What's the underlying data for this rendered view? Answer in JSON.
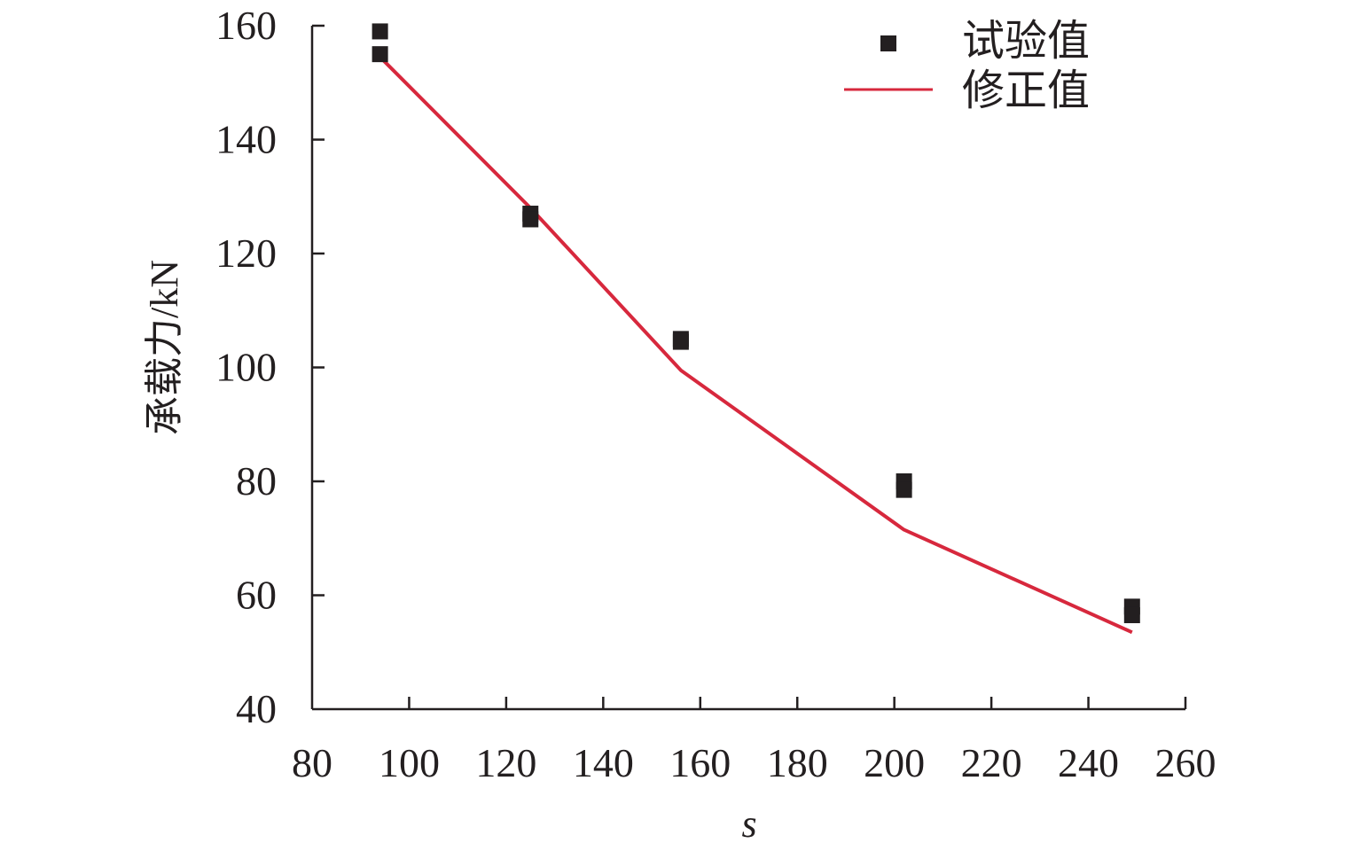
{
  "chart_data": {
    "type": "scatter",
    "title": "",
    "xlabel": "s",
    "ylabel": "承载力/kN",
    "xlim": [
      80,
      260
    ],
    "ylim": [
      40,
      160
    ],
    "x_ticks": [
      80,
      100,
      120,
      140,
      160,
      180,
      200,
      220,
      240,
      260
    ],
    "y_ticks": [
      40,
      60,
      80,
      100,
      120,
      140,
      160
    ],
    "grid": false,
    "legend_position": "top-right",
    "series": [
      {
        "name": "试验值",
        "kind": "scatter",
        "marker": "square",
        "color": "#231f20",
        "points": [
          {
            "x": 94,
            "y": 159
          },
          {
            "x": 94,
            "y": 155
          },
          {
            "x": 125,
            "y": 127
          },
          {
            "x": 125,
            "y": 126
          },
          {
            "x": 156,
            "y": 105
          },
          {
            "x": 156,
            "y": 104.5
          },
          {
            "x": 202,
            "y": 80
          },
          {
            "x": 202,
            "y": 78.5
          },
          {
            "x": 249,
            "y": 58
          },
          {
            "x": 249,
            "y": 56.5
          }
        ]
      },
      {
        "name": "修正值",
        "kind": "line",
        "color": "#d7283d",
        "points": [
          {
            "x": 94,
            "y": 154.5
          },
          {
            "x": 125,
            "y": 128
          },
          {
            "x": 156,
            "y": 99.5
          },
          {
            "x": 202,
            "y": 71.5
          },
          {
            "x": 249,
            "y": 53.5
          }
        ]
      }
    ]
  }
}
